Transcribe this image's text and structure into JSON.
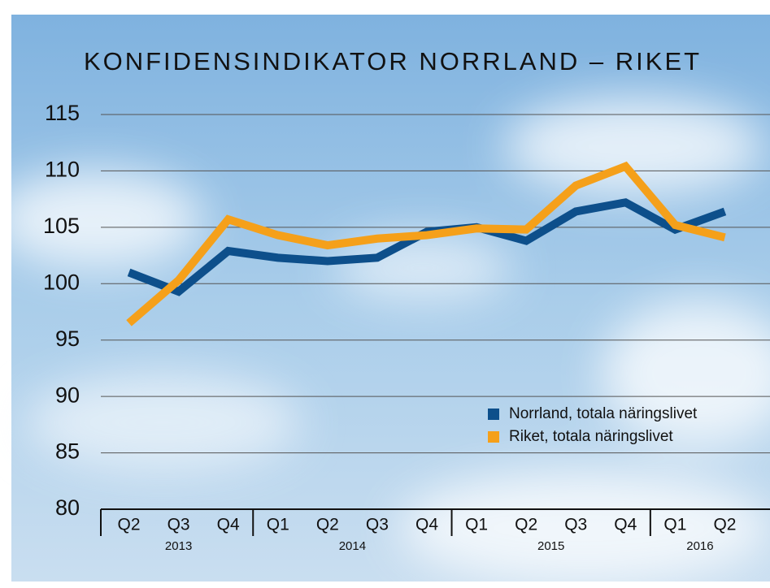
{
  "chart_data": {
    "type": "line",
    "title": "KONFIDENSINDIKATOR NORRLAND – RIKET",
    "groups": [
      {
        "label": "2013",
        "categories": [
          "Q2",
          "Q3",
          "Q4"
        ]
      },
      {
        "label": "2014",
        "categories": [
          "Q1",
          "Q2",
          "Q3",
          "Q4"
        ]
      },
      {
        "label": "2015",
        "categories": [
          "Q1",
          "Q2",
          "Q3",
          "Q4"
        ]
      },
      {
        "label": "2016",
        "categories": [
          "Q1",
          "Q2"
        ]
      }
    ],
    "series": [
      {
        "name": "Norrland, totala näringslivet",
        "color": "#0d4f8b",
        "values": [
          101.0,
          99.3,
          102.9,
          102.3,
          102.0,
          102.3,
          104.6,
          105.0,
          103.8,
          106.4,
          107.2,
          104.8,
          106.4
        ]
      },
      {
        "name": "Riket, totala näringslivet",
        "color": "#f5a01a",
        "values": [
          96.5,
          100.3,
          105.7,
          104.3,
          103.4,
          104.0,
          104.3,
          104.9,
          104.8,
          108.7,
          110.4,
          105.2,
          104.1
        ]
      }
    ],
    "ylim": [
      80,
      115
    ],
    "yticks": [
      80,
      85,
      90,
      95,
      100,
      105,
      110,
      115
    ],
    "grid": true,
    "legend": "lower-right"
  }
}
